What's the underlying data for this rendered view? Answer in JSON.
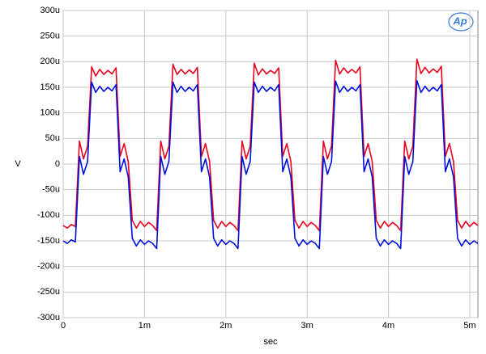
{
  "chart_data": {
    "type": "line",
    "logo": "Ap",
    "xlabel": "sec",
    "ylabel": "V",
    "xlim": [
      0,
      0.0051
    ],
    "ylim": [
      -0.0003,
      0.0003
    ],
    "xticks": [
      0,
      {
        "value": 0.001,
        "label": "1m"
      },
      {
        "value": 0.002,
        "label": "2m"
      },
      {
        "value": 0.003,
        "label": "3m"
      },
      {
        "value": 0.004,
        "label": "4m"
      },
      {
        "value": 0.005,
        "label": "5m"
      }
    ],
    "yticks": [
      {
        "value": 0.0003,
        "label": "300u"
      },
      {
        "value": 0.00025,
        "label": "250u"
      },
      {
        "value": 0.0002,
        "label": "200u"
      },
      {
        "value": 0.00015,
        "label": "150u"
      },
      {
        "value": 0.0001,
        "label": "100u"
      },
      {
        "value": 5e-05,
        "label": "50u"
      },
      0,
      {
        "value": -5e-05,
        "label": "-50u"
      },
      {
        "value": -0.0001,
        "label": "-100u"
      },
      {
        "value": -0.00015,
        "label": "-150u"
      },
      {
        "value": -0.0002,
        "label": "-200u"
      },
      {
        "value": -0.00025,
        "label": "-250u"
      },
      {
        "value": -0.0003,
        "label": "-300u"
      }
    ],
    "grid": true,
    "x": [
      0,
      5e-05,
      0.0001,
      0.00015,
      0.0002,
      0.00025,
      0.0003,
      0.00035,
      0.0004,
      0.00045,
      0.0005,
      0.00055,
      0.0006,
      0.00065,
      0.0007,
      0.00075,
      0.0008,
      0.00085,
      0.0009,
      0.00095,
      0.001,
      0.00105,
      0.0011,
      0.00115,
      0.0012,
      0.00125,
      0.0013,
      0.00135,
      0.0014,
      0.00145,
      0.0015,
      0.00155,
      0.0016,
      0.00165,
      0.0017,
      0.00175,
      0.0018,
      0.00185,
      0.0019,
      0.00195,
      0.002,
      0.00205,
      0.0021,
      0.00215,
      0.0022,
      0.00225,
      0.0023,
      0.00235,
      0.0024,
      0.00245,
      0.0025,
      0.00255,
      0.0026,
      0.00265,
      0.0027,
      0.00275,
      0.0028,
      0.00285,
      0.0029,
      0.00295,
      0.003,
      0.00305,
      0.0031,
      0.00315,
      0.0032,
      0.00325,
      0.0033,
      0.00335,
      0.0034,
      0.00345,
      0.0035,
      0.00355,
      0.0036,
      0.00365,
      0.0037,
      0.00375,
      0.0038,
      0.00385,
      0.0039,
      0.00395,
      0.004,
      0.00405,
      0.0041,
      0.00415,
      0.0042,
      0.00425,
      0.0043,
      0.00435,
      0.0044,
      0.00445,
      0.0045,
      0.00455,
      0.0046,
      0.00465,
      0.0047,
      0.00475,
      0.0048,
      0.00485,
      0.0049,
      0.00495,
      0.005,
      0.00505,
      0.0051
    ],
    "series": [
      {
        "color": "#e8001c",
        "values": [
          -0.00012,
          -0.000125,
          -0.000118,
          -0.000122,
          4.5e-05,
          1e-05,
          3.5e-05,
          0.00019,
          0.000172,
          0.000185,
          0.000175,
          0.000183,
          0.000176,
          0.000188,
          1.5e-05,
          4e-05,
          5e-06,
          -0.00011,
          -0.000125,
          -0.000112,
          -0.000122,
          -0.000114,
          -0.00012,
          -0.00013,
          4.5e-05,
          1e-05,
          3.5e-05,
          0.000195,
          0.000175,
          0.000185,
          0.000176,
          0.000184,
          0.000177,
          0.000189,
          1.5e-05,
          4e-05,
          5e-06,
          -0.00011,
          -0.000125,
          -0.000112,
          -0.000122,
          -0.000114,
          -0.00012,
          -0.00013,
          4.5e-05,
          1e-05,
          3.5e-05,
          0.000197,
          0.000174,
          0.000186,
          0.000176,
          0.000183,
          0.000177,
          0.000188,
          1.5e-05,
          4e-05,
          5e-06,
          -0.00011,
          -0.000125,
          -0.000112,
          -0.000122,
          -0.000114,
          -0.00012,
          -0.00013,
          4.5e-05,
          1e-05,
          3.5e-05,
          0.000203,
          0.000176,
          0.000188,
          0.000178,
          0.000185,
          0.000178,
          0.00019,
          1.5e-05,
          4e-05,
          5e-06,
          -0.00011,
          -0.000125,
          -0.000112,
          -0.000122,
          -0.000114,
          -0.00012,
          -0.00013,
          4.5e-05,
          1e-05,
          3.5e-05,
          0.000205,
          0.000177,
          0.000189,
          0.000178,
          0.000186,
          0.000179,
          0.000191,
          1.5e-05,
          4e-05,
          5e-06,
          -0.00011,
          -0.000125,
          -0.000112,
          -0.000122,
          -0.000114,
          -0.00012
        ]
      },
      {
        "color": "#0010d8",
        "values": [
          -0.00015,
          -0.000155,
          -0.000148,
          -0.000152,
          1.5e-05,
          -2e-05,
          5e-06,
          0.00016,
          0.00014,
          0.000152,
          0.000142,
          0.00015,
          0.000143,
          0.000155,
          -1.5e-05,
          1e-05,
          -2.5e-05,
          -0.000145,
          -0.00016,
          -0.000148,
          -0.000157,
          -0.00015,
          -0.000155,
          -0.000165,
          1.5e-05,
          -2e-05,
          5e-06,
          0.00016,
          0.00014,
          0.000152,
          0.000142,
          0.00015,
          0.000143,
          0.000155,
          -1.5e-05,
          1e-05,
          -2.5e-05,
          -0.000145,
          -0.00016,
          -0.000148,
          -0.000157,
          -0.00015,
          -0.000155,
          -0.000165,
          1.5e-05,
          -2e-05,
          5e-06,
          0.00016,
          0.00014,
          0.000152,
          0.000142,
          0.00015,
          0.000143,
          0.000155,
          -1.5e-05,
          1e-05,
          -2.5e-05,
          -0.000145,
          -0.00016,
          -0.000148,
          -0.000157,
          -0.00015,
          -0.000155,
          -0.000165,
          1.5e-05,
          -2e-05,
          5e-06,
          0.000162,
          0.00014,
          0.000152,
          0.000142,
          0.00015,
          0.000143,
          0.000155,
          -1.5e-05,
          1e-05,
          -2.5e-05,
          -0.000145,
          -0.00016,
          -0.000148,
          -0.000157,
          -0.00015,
          -0.000155,
          -0.000165,
          1.5e-05,
          -2e-05,
          5e-06,
          0.000163,
          0.00014,
          0.000152,
          0.000142,
          0.00015,
          0.000143,
          0.000155,
          -1.5e-05,
          1e-05,
          -2.5e-05,
          -0.000145,
          -0.00016,
          -0.000148,
          -0.000157,
          -0.00015,
          -0.000155
        ]
      }
    ]
  }
}
